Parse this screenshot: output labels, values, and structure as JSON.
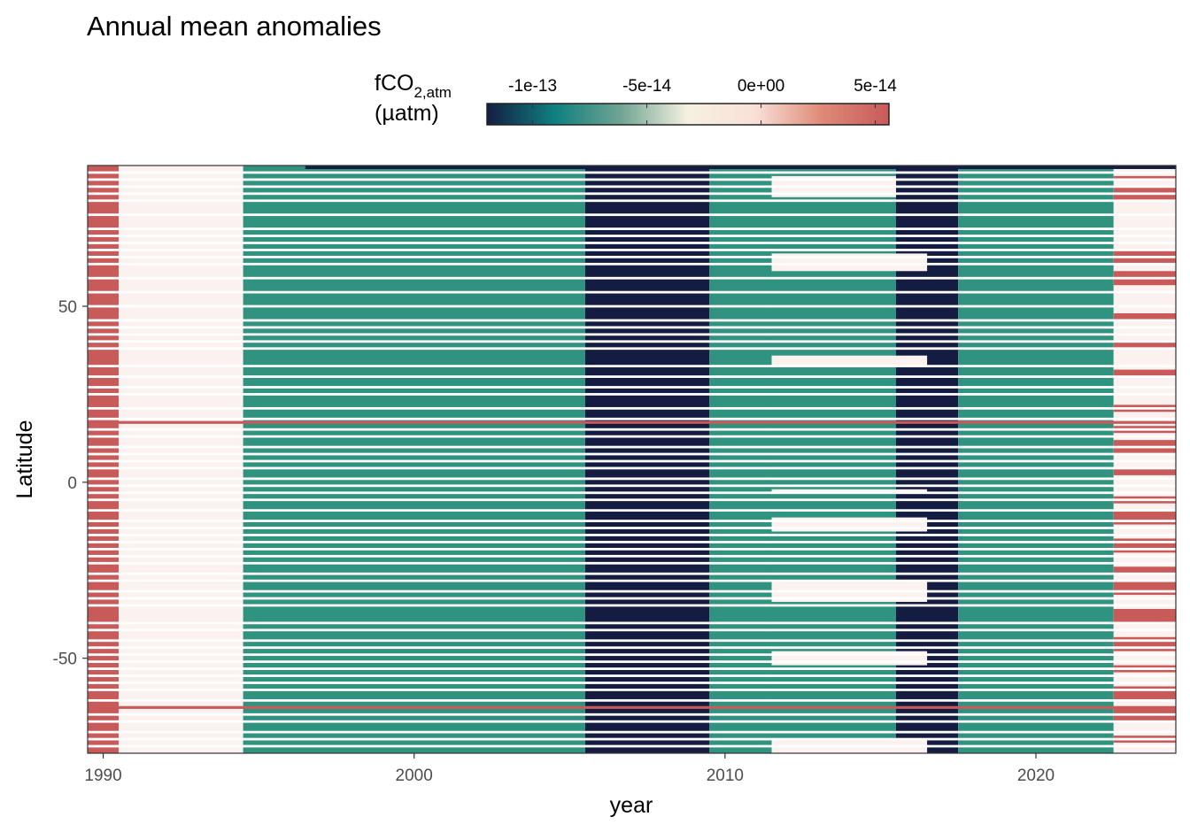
{
  "chart_data": {
    "type": "heatmap",
    "title": "Annual mean anomalies",
    "xlabel": "year",
    "ylabel": "Latitude",
    "x_ticks": [
      1990,
      2000,
      2010,
      2020
    ],
    "y_ticks": [
      50,
      0,
      -50
    ],
    "y_tick_labels": [
      "50",
      "0",
      "-50"
    ],
    "xlim": [
      1989.5,
      2024.5
    ],
    "ylim": [
      -77,
      90
    ],
    "legend": {
      "title_main": "fCO",
      "title_sub": "2,atm",
      "title_unit": "(µatm)",
      "placement": "top",
      "range": [
        -1.2e-13,
        5.6e-14
      ],
      "ticks": [
        -1e-13,
        -5e-14,
        0,
        5e-14
      ],
      "tick_labels": [
        "-1e-13",
        "-5e-14",
        "0e+00",
        "5e-14"
      ],
      "colors": [
        "#141d43",
        "#0f7f7f",
        "#70a494",
        "#f6f1e0",
        "#f9e0d7",
        "#de8a76",
        "#c85a5a"
      ]
    },
    "band_values": {
      "red": 5e-14,
      "cream": 0,
      "teal": -5e-14,
      "navy": -1.1e-13
    },
    "colors": {
      "red": "#c85a5a",
      "cream": "#fbf1ee",
      "teal": "#2f9380",
      "navy": "#151c42"
    },
    "year_blocks": [
      {
        "from": 1989.5,
        "to": 1990.5,
        "fill": "red"
      },
      {
        "from": 1990.5,
        "to": 1994.5,
        "fill": "cream"
      },
      {
        "from": 1994.5,
        "to": 2005.5,
        "fill": "teal"
      },
      {
        "from": 2005.5,
        "to": 2009.5,
        "fill": "navy"
      },
      {
        "from": 2009.5,
        "to": 2011.5,
        "fill": "teal"
      },
      {
        "from": 2011.5,
        "to": 2015.5,
        "fill": "teal"
      },
      {
        "from": 2015.5,
        "to": 2017.5,
        "fill": "navy"
      },
      {
        "from": 2017.5,
        "to": 2022.5,
        "fill": "teal"
      },
      {
        "from": 2022.5,
        "to": 2024.5,
        "fill": "cream"
      }
    ],
    "cream_windows": [
      {
        "year_from": 2011.5,
        "year_to": 2015.5,
        "lat_from": 81,
        "lat_to": 87
      },
      {
        "year_from": 2011.5,
        "year_to": 2016.5,
        "lat_from": 60,
        "lat_to": 65
      },
      {
        "year_from": 2011.5,
        "year_to": 2016.5,
        "lat_from": 33,
        "lat_to": 36
      },
      {
        "year_from": 2011.5,
        "year_to": 2016.5,
        "lat_from": -3,
        "lat_to": -2
      },
      {
        "year_from": 2011.5,
        "year_to": 2016.5,
        "lat_from": -14,
        "lat_to": -10
      },
      {
        "year_from": 2011.5,
        "year_to": 2016.5,
        "lat_from": -34,
        "lat_to": -28
      },
      {
        "year_from": 2011.5,
        "year_to": 2016.5,
        "lat_from": -52,
        "lat_to": -48
      },
      {
        "year_from": 2011.5,
        "year_to": 2016.5,
        "lat_from": -77,
        "lat_to": -73
      }
    ],
    "red_rows_early": [
      [
        86,
        88
      ],
      [
        72,
        80
      ],
      [
        64,
        68
      ],
      [
        50,
        60
      ],
      [
        44,
        47
      ],
      [
        32,
        42
      ],
      [
        22,
        28
      ],
      [
        16,
        18
      ],
      [
        7,
        13
      ],
      [
        -2,
        2
      ],
      [
        -9,
        -5
      ],
      [
        -19,
        -14
      ],
      [
        -26,
        -24
      ],
      [
        -42,
        -35
      ],
      [
        -54,
        -50
      ],
      [
        -70,
        -60
      ]
    ],
    "red_rows_late": [
      [
        86,
        87
      ],
      [
        80,
        84
      ],
      [
        62,
        66
      ],
      [
        56,
        60
      ],
      [
        46,
        48
      ],
      [
        38,
        40
      ],
      [
        30,
        32
      ],
      [
        20,
        22
      ],
      [
        14,
        16
      ],
      [
        8,
        12
      ],
      [
        2,
        4
      ],
      [
        -6,
        -4
      ],
      [
        -12,
        -8
      ],
      [
        -20,
        -16
      ],
      [
        -26,
        -24
      ],
      [
        -32,
        -28
      ],
      [
        -40,
        -36
      ],
      [
        -48,
        -44
      ],
      [
        -54,
        -52
      ],
      [
        -62,
        -58
      ],
      [
        -68,
        -64
      ],
      [
        -74,
        -72
      ]
    ],
    "full_width_red_lines": [
      17,
      -64
    ],
    "white_gap_lats": [
      88,
      86,
      84,
      82,
      80,
      76,
      72,
      70,
      68,
      66,
      64,
      62,
      58,
      54,
      50,
      46,
      44,
      42,
      40,
      38,
      33,
      30,
      27,
      25,
      21,
      18,
      15,
      13,
      10,
      8,
      6,
      4,
      1,
      -1,
      -3,
      -5,
      -8,
      -11,
      -13,
      -15,
      -17,
      -19,
      -21,
      -23,
      -26,
      -28,
      -31,
      -33,
      -35,
      -40,
      -42,
      -45,
      -47,
      -49,
      -51,
      -53,
      -55,
      -57,
      -59,
      -62,
      -66,
      -68,
      -71,
      -73,
      -75
    ]
  }
}
